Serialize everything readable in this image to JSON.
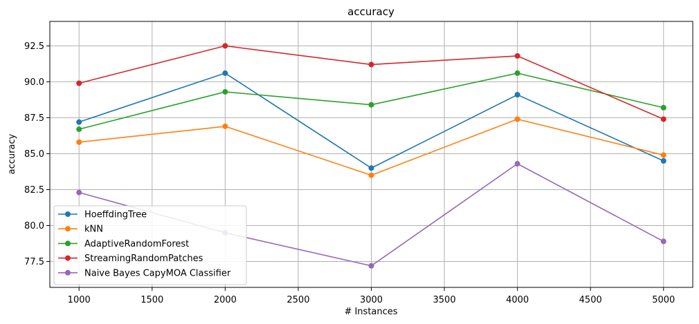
{
  "chart_data": {
    "type": "line",
    "title": "accuracy",
    "xlabel": "# Instances",
    "ylabel": "accuracy",
    "x": [
      1000,
      2000,
      3000,
      4000,
      5000
    ],
    "xlim": [
      800,
      5200
    ],
    "ylim": [
      75.7,
      94.2
    ],
    "xticks": [
      1000,
      1500,
      2000,
      2500,
      3000,
      3500,
      4000,
      4500,
      5000
    ],
    "xtick_labels": [
      "1000",
      "1500",
      "2000",
      "2500",
      "3000",
      "3500",
      "4000",
      "4500",
      "5000"
    ],
    "yticks": [
      77.5,
      80.0,
      82.5,
      85.0,
      87.5,
      90.0,
      92.5
    ],
    "ytick_labels": [
      "77.5",
      "80.0",
      "82.5",
      "85.0",
      "87.5",
      "90.0",
      "92.5"
    ],
    "grid": true,
    "legend_position": "bottom-left",
    "series": [
      {
        "name": "HoeffdingTree",
        "color": "#1f77b4",
        "values": [
          87.2,
          90.6,
          84.0,
          89.1,
          84.5
        ]
      },
      {
        "name": "kNN",
        "color": "#ff7f0e",
        "values": [
          85.8,
          86.9,
          83.5,
          87.4,
          84.9
        ]
      },
      {
        "name": "AdaptiveRandomForest",
        "color": "#2ca02c",
        "values": [
          86.7,
          89.3,
          88.4,
          90.6,
          88.2
        ]
      },
      {
        "name": "StreamingRandomPatches",
        "color": "#d62728",
        "values": [
          89.9,
          92.5,
          91.2,
          91.8,
          87.4
        ]
      },
      {
        "name": "Naive Bayes CapyMOA Classifier",
        "color": "#9467bd",
        "values": [
          82.3,
          79.5,
          77.2,
          84.3,
          78.9
        ]
      }
    ]
  }
}
